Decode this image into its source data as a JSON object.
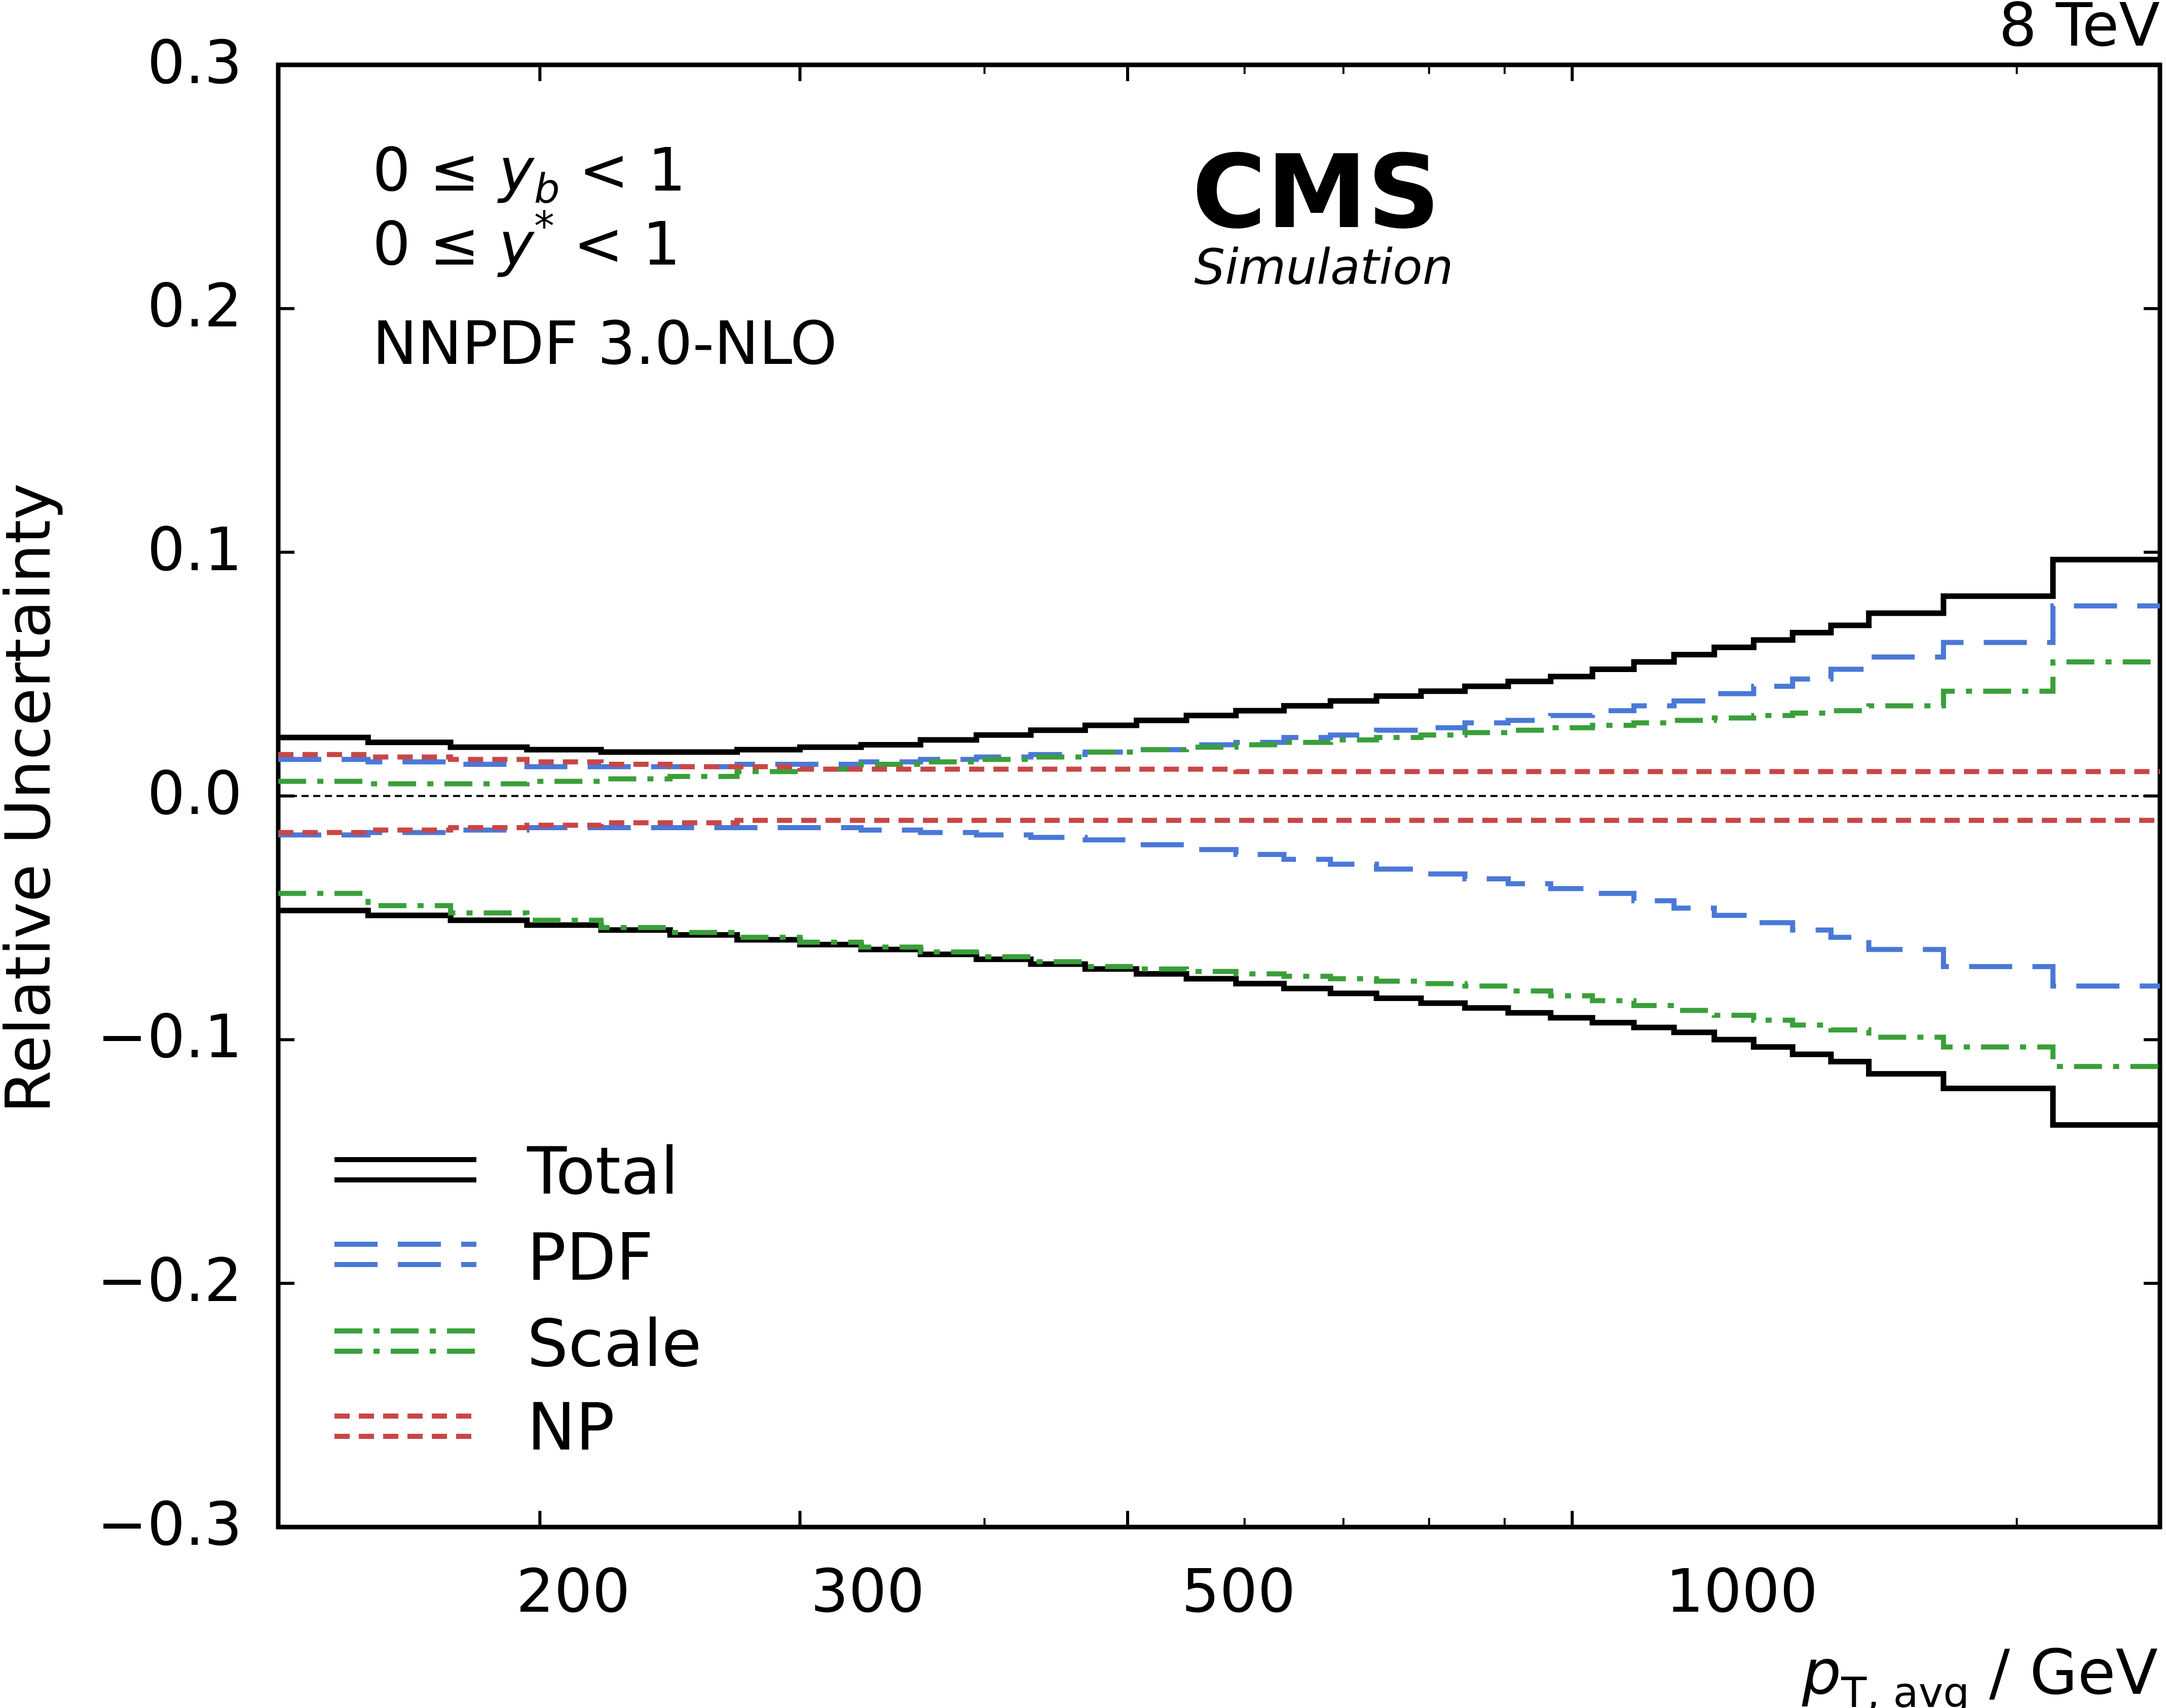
{
  "energy_label": "8 TeV",
  "experiment": "CMS",
  "experiment_sub": "Simulation",
  "cuts": [
    {
      "prefix": "0 ≤ ",
      "var": "y",
      "sub": "b",
      "sup": "",
      "suffix": " < 1"
    },
    {
      "prefix": "0 ≤ ",
      "var": "y",
      "sub": "",
      "sup": "*",
      "suffix": " < 1"
    }
  ],
  "pdf_set": "NNPDF 3.0-NLO",
  "chart_data": {
    "type": "line",
    "xlabel_var": "p",
    "xlabel_sub": "T, avg",
    "xlabel_unit": " / GeV",
    "ylabel": "Relative Uncertainty",
    "xscale": "log",
    "xlim": [
      133,
      2500
    ],
    "ylim": [
      -0.3,
      0.3
    ],
    "x_ticks": [
      200,
      300,
      500,
      1000
    ],
    "x_tick_labels": [
      "200",
      "300",
      "500",
      "1000"
    ],
    "x_minor_ticks": [
      400,
      600,
      700,
      800,
      900,
      2000
    ],
    "y_ticks": [
      -0.3,
      -0.2,
      -0.1,
      0.0,
      0.1,
      0.2,
      0.3
    ],
    "y_tick_labels": [
      "−0.3",
      "−0.2",
      "−0.1",
      "0.0",
      "0.1",
      "0.2",
      "0.3"
    ],
    "zero_line": true,
    "legend_position": "bottom-left",
    "bin_edges": [
      133,
      153,
      174,
      196,
      220,
      245,
      272,
      300,
      330,
      362,
      395,
      430,
      468,
      507,
      548,
      592,
      638,
      686,
      737,
      790,
      846,
      905,
      967,
      1032,
      1101,
      1172,
      1248,
      1327,
      1410,
      1497,
      1588,
      1784,
      2116,
      2500
    ],
    "series": [
      {
        "name": "Total",
        "color": "#000000",
        "style": "solid",
        "upper": [
          0.024,
          0.022,
          0.02,
          0.019,
          0.018,
          0.018,
          0.019,
          0.02,
          0.021,
          0.023,
          0.025,
          0.027,
          0.029,
          0.031,
          0.033,
          0.035,
          0.037,
          0.039,
          0.041,
          0.043,
          0.045,
          0.047,
          0.049,
          0.052,
          0.055,
          0.058,
          0.061,
          0.064,
          0.067,
          0.07,
          0.075,
          0.082,
          0.097
        ],
        "lower": [
          -0.047,
          -0.049,
          -0.051,
          -0.053,
          -0.055,
          -0.057,
          -0.059,
          -0.061,
          -0.063,
          -0.065,
          -0.067,
          -0.069,
          -0.071,
          -0.073,
          -0.075,
          -0.077,
          -0.079,
          -0.081,
          -0.083,
          -0.085,
          -0.087,
          -0.089,
          -0.091,
          -0.093,
          -0.095,
          -0.097,
          -0.1,
          -0.103,
          -0.106,
          -0.109,
          -0.114,
          -0.12,
          -0.135
        ]
      },
      {
        "name": "PDF",
        "color": "#4a78d6",
        "style": "dashed",
        "upper": [
          0.015,
          0.014,
          0.013,
          0.012,
          0.012,
          0.012,
          0.013,
          0.013,
          0.014,
          0.015,
          0.016,
          0.017,
          0.018,
          0.019,
          0.021,
          0.022,
          0.024,
          0.025,
          0.027,
          0.028,
          0.03,
          0.031,
          0.033,
          0.035,
          0.037,
          0.039,
          0.042,
          0.045,
          0.048,
          0.052,
          0.057,
          0.063,
          0.078
        ],
        "lower": [
          -0.016,
          -0.015,
          -0.014,
          -0.013,
          -0.013,
          -0.013,
          -0.013,
          -0.013,
          -0.014,
          -0.015,
          -0.016,
          -0.017,
          -0.018,
          -0.02,
          -0.022,
          -0.024,
          -0.026,
          -0.028,
          -0.03,
          -0.032,
          -0.034,
          -0.036,
          -0.038,
          -0.04,
          -0.043,
          -0.046,
          -0.049,
          -0.052,
          -0.055,
          -0.058,
          -0.063,
          -0.07,
          -0.078
        ]
      },
      {
        "name": "Scale",
        "color": "#3a9f3a",
        "style": "dashdot",
        "upper": [
          0.006,
          0.005,
          0.005,
          0.006,
          0.007,
          0.008,
          0.01,
          0.011,
          0.013,
          0.014,
          0.015,
          0.016,
          0.018,
          0.019,
          0.02,
          0.021,
          0.022,
          0.023,
          0.024,
          0.025,
          0.026,
          0.027,
          0.028,
          0.029,
          0.03,
          0.031,
          0.032,
          0.033,
          0.034,
          0.035,
          0.037,
          0.043,
          0.055
        ],
        "lower": [
          -0.04,
          -0.045,
          -0.048,
          -0.051,
          -0.054,
          -0.056,
          -0.058,
          -0.06,
          -0.062,
          -0.064,
          -0.066,
          -0.068,
          -0.07,
          -0.071,
          -0.072,
          -0.073,
          -0.074,
          -0.075,
          -0.076,
          -0.077,
          -0.078,
          -0.08,
          -0.082,
          -0.084,
          -0.086,
          -0.088,
          -0.09,
          -0.092,
          -0.094,
          -0.096,
          -0.099,
          -0.103,
          -0.111
        ]
      },
      {
        "name": "NP",
        "color": "#c94646",
        "style": "dotted",
        "upper": [
          0.017,
          0.016,
          0.015,
          0.014,
          0.013,
          0.012,
          0.012,
          0.011,
          0.011,
          0.011,
          0.011,
          0.011,
          0.011,
          0.011,
          0.011,
          0.01,
          0.01,
          0.01,
          0.01,
          0.01,
          0.01,
          0.01,
          0.01,
          0.01,
          0.01,
          0.01,
          0.01,
          0.01,
          0.01,
          0.01,
          0.01,
          0.01,
          0.01
        ],
        "lower": [
          -0.015,
          -0.014,
          -0.013,
          -0.012,
          -0.011,
          -0.011,
          -0.01,
          -0.01,
          -0.01,
          -0.01,
          -0.01,
          -0.01,
          -0.01,
          -0.01,
          -0.01,
          -0.01,
          -0.01,
          -0.01,
          -0.01,
          -0.01,
          -0.01,
          -0.01,
          -0.01,
          -0.01,
          -0.01,
          -0.01,
          -0.01,
          -0.01,
          -0.01,
          -0.01,
          -0.01,
          -0.01,
          -0.01
        ]
      }
    ]
  }
}
